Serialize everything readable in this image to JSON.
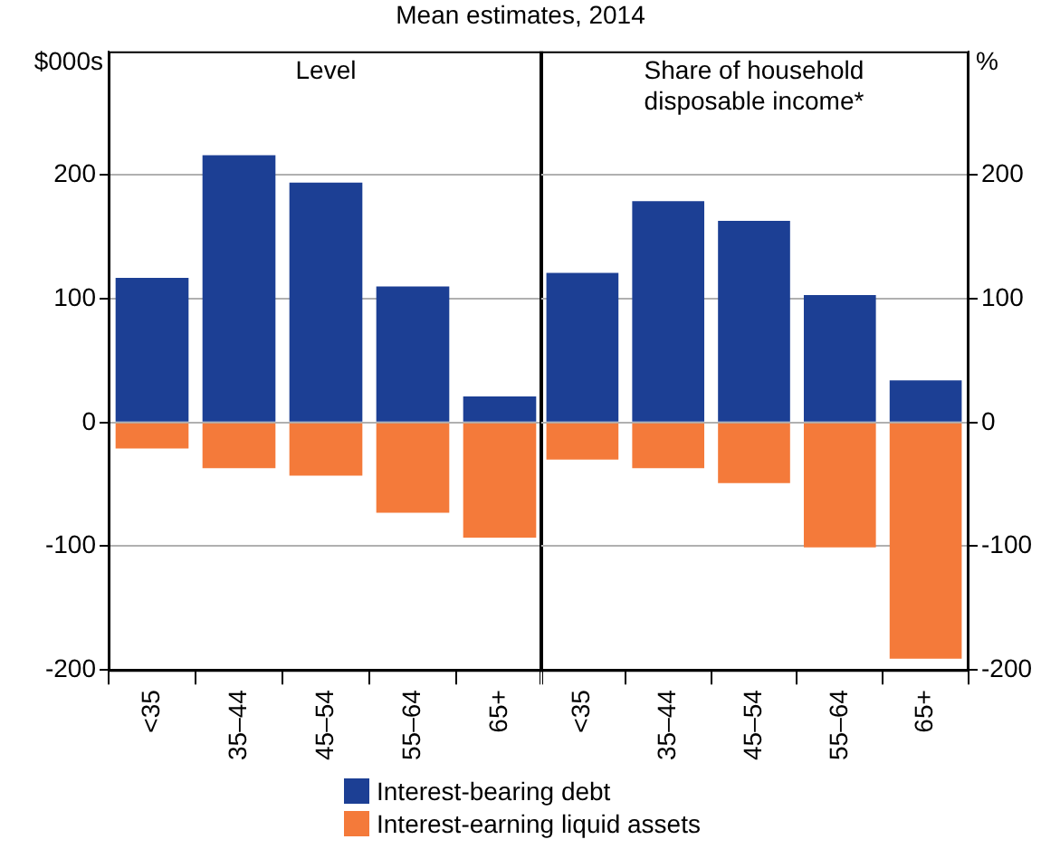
{
  "chart_data": [
    {
      "type": "bar",
      "title": "Level",
      "annotations": [
        "Mean estimates, 2014"
      ],
      "ylabel": "$000s",
      "categories": [
        "<35",
        "35–44",
        "45–54",
        "55–64",
        "65+"
      ],
      "stacked": true,
      "ylim": [
        -200,
        300
      ],
      "yticks": [
        -200,
        -100,
        0,
        100,
        200
      ],
      "grid": "y",
      "legend": "bottom",
      "series": [
        {
          "name": "Interest-bearing debt",
          "color": "#1c3f94",
          "values": [
            117,
            216,
            194,
            110,
            21
          ]
        },
        {
          "name": "Interest-earning liquid assets",
          "color": "#f47a3a",
          "values": [
            -21,
            -37,
            -43,
            -73,
            -93
          ]
        }
      ]
    },
    {
      "type": "bar",
      "title": "Share of household disposable income*",
      "y2label": "%",
      "categories": [
        "<35",
        "35–44",
        "45–54",
        "55–64",
        "65+"
      ],
      "stacked": true,
      "y2lim": [
        -200,
        300
      ],
      "y2ticks": [
        -200,
        -100,
        0,
        100,
        200
      ],
      "grid": "y",
      "series": [
        {
          "color": "#1c3f94",
          "axis": "y2",
          "values": [
            121,
            179,
            163,
            103,
            34
          ]
        },
        {
          "color": "#f47a3a",
          "axis": "y2",
          "values": [
            -30,
            -37,
            -49,
            -101,
            -191
          ]
        }
      ]
    }
  ]
}
